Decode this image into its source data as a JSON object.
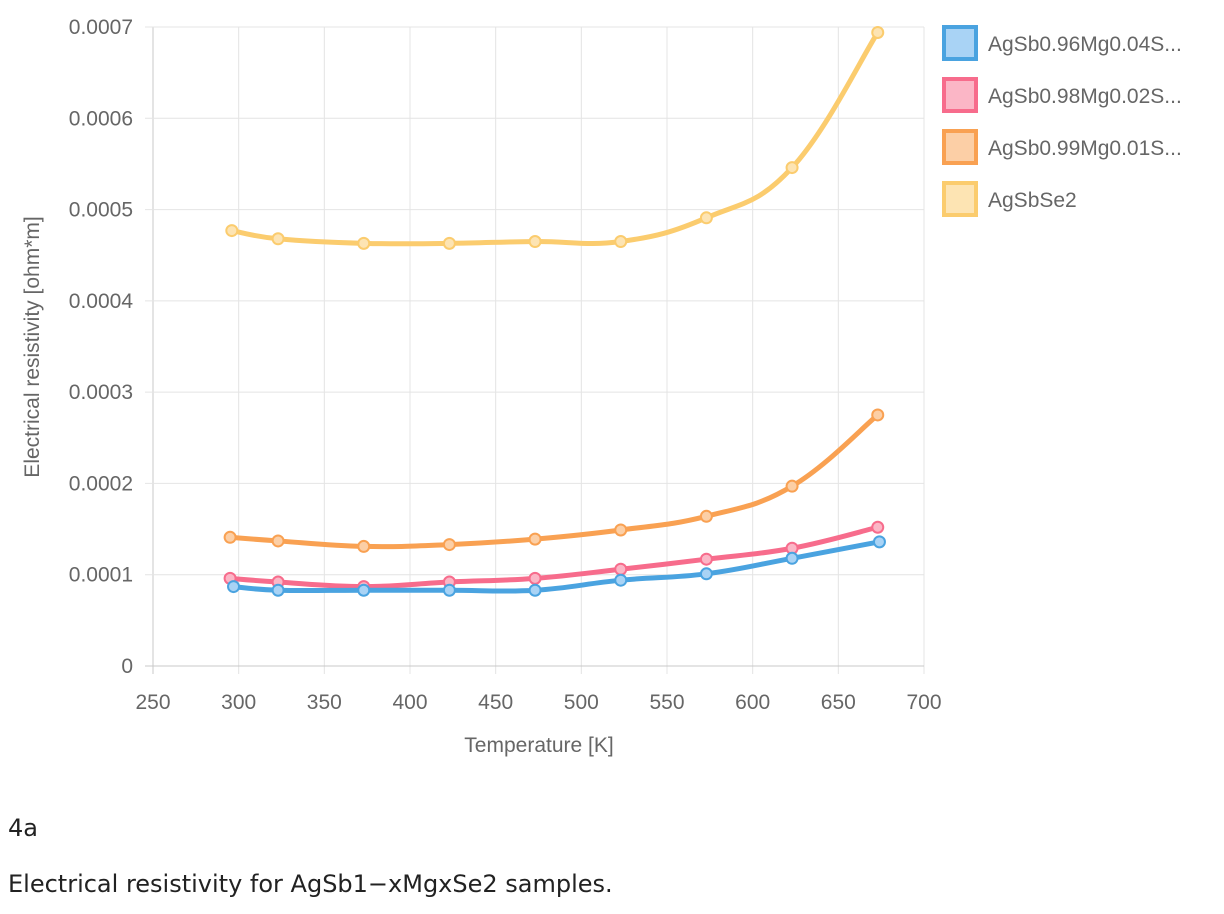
{
  "caption": {
    "figure_id": "4a",
    "text": "Electrical resistivity for AgSb1−xMgxSe2 samples."
  },
  "chart_data": {
    "type": "line",
    "xlabel": "Temperature [K]",
    "ylabel": "Electrical resistivity [ohm*m]",
    "xlim": [
      250,
      700
    ],
    "ylim": [
      0,
      0.0007
    ],
    "xticks": [
      "250",
      "300",
      "350",
      "400",
      "450",
      "500",
      "550",
      "600",
      "650",
      "700"
    ],
    "yticks": [
      "0",
      "0.0001",
      "0.0002",
      "0.0003",
      "0.0004",
      "0.0005",
      "0.0006",
      "0.0007"
    ],
    "grid": true,
    "legend_position": "right",
    "series": [
      {
        "name": "AgSb0.96Mg0.04S...",
        "color": "#4aa3e0",
        "fill": "#a9d3f5",
        "points": [
          [
            297,
            8.7e-05
          ],
          [
            323,
            8.3e-05
          ],
          [
            373,
            8.3e-05
          ],
          [
            423,
            8.3e-05
          ],
          [
            473,
            8.3e-05
          ],
          [
            523,
            9.4e-05
          ],
          [
            573,
            0.000101
          ],
          [
            623,
            0.000118
          ],
          [
            674,
            0.000136
          ]
        ]
      },
      {
        "name": "AgSb0.98Mg0.02S...",
        "color": "#f76c8c",
        "fill": "#fbb6c6",
        "points": [
          [
            295,
            9.6e-05
          ],
          [
            323,
            9.2e-05
          ],
          [
            373,
            8.7e-05
          ],
          [
            423,
            9.2e-05
          ],
          [
            473,
            9.6e-05
          ],
          [
            523,
            0.000106
          ],
          [
            573,
            0.000117
          ],
          [
            623,
            0.000129
          ],
          [
            673,
            0.000152
          ]
        ]
      },
      {
        "name": "AgSb0.99Mg0.01S...",
        "color": "#f9a152",
        "fill": "#fccfa6",
        "points": [
          [
            295,
            0.000141
          ],
          [
            323,
            0.000137
          ],
          [
            373,
            0.000131
          ],
          [
            423,
            0.000133
          ],
          [
            473,
            0.000139
          ],
          [
            523,
            0.000149
          ],
          [
            573,
            0.000164
          ],
          [
            623,
            0.000197
          ],
          [
            673,
            0.000275
          ]
        ]
      },
      {
        "name": "AgSbSe2",
        "color": "#fbcc6e",
        "fill": "#fde4b3",
        "points": [
          [
            296,
            0.000477
          ],
          [
            323,
            0.000468
          ],
          [
            373,
            0.000463
          ],
          [
            423,
            0.000463
          ],
          [
            473,
            0.000465
          ],
          [
            523,
            0.000465
          ],
          [
            573,
            0.000491
          ],
          [
            623,
            0.000546
          ],
          [
            673,
            0.000694
          ]
        ]
      }
    ]
  }
}
